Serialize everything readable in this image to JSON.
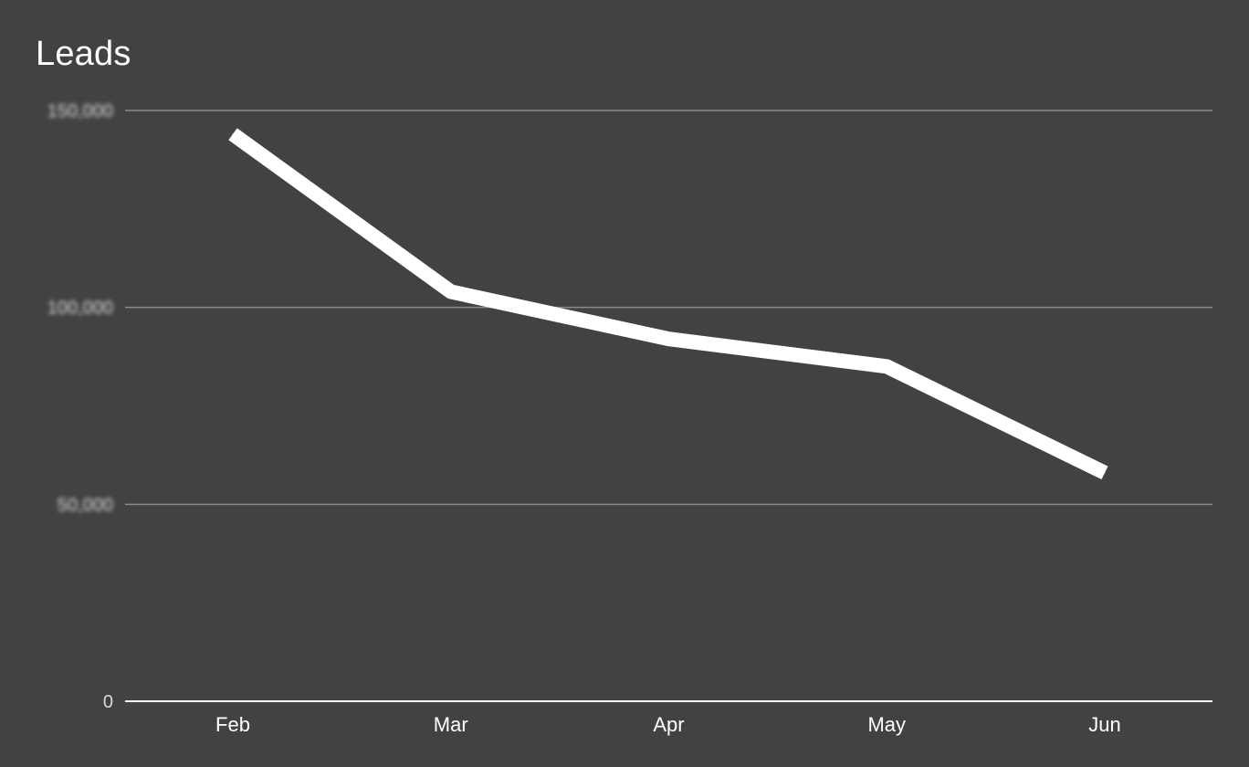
{
  "chart_data": {
    "type": "line",
    "title": "Leads",
    "xlabel": "",
    "ylabel": "",
    "categories": [
      "Feb",
      "Mar",
      "Apr",
      "May",
      "Jun"
    ],
    "series": [
      {
        "values": [
          144000,
          104000,
          92000,
          85000,
          58000
        ]
      }
    ],
    "ylim": [
      0,
      150000
    ],
    "y_ticks": [
      0,
      50000,
      100000,
      150000
    ],
    "y_tick_labels": [
      "0",
      "50,000",
      "100,000",
      "150,000"
    ],
    "y_tick_labels_blurred": [
      false,
      true,
      true,
      true
    ],
    "grid": true,
    "legend": "none"
  },
  "colors": {
    "background": "#424242",
    "line": "#ffffff",
    "gridline": "#8a8a8a",
    "baseline": "#ffffff",
    "tick_label": "#d9d9d9"
  }
}
